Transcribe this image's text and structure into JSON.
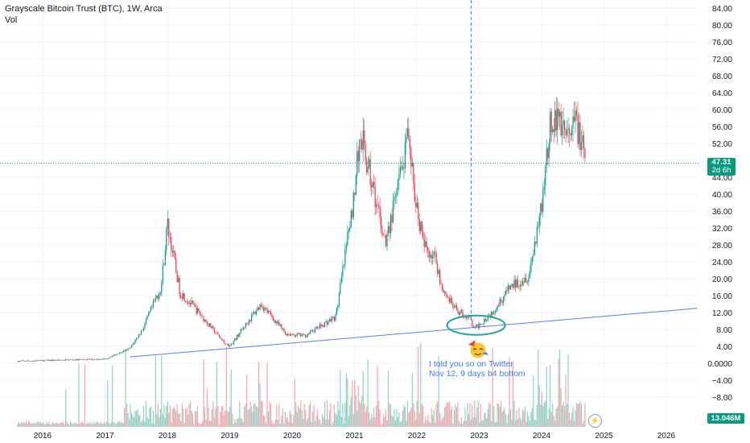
{
  "legend": {
    "title": "Grayscale Bitcoin Trust (BTC), 1W, Arca",
    "sub": "Vol"
  },
  "price_tag": {
    "value": "47.31",
    "countdown": "2d 6h"
  },
  "volume_tag": "13.046M",
  "annotation": {
    "line1": "I told you so on Twitter",
    "line2": "Nov 12, 9 days b4 bottom"
  },
  "icons": {
    "emoji": "party-face-icon",
    "bolt": "lightning-icon"
  },
  "colors": {
    "up": "#089981",
    "down": "#f23645",
    "trendline": "#5b7fe0",
    "annotation": "#3c7de8",
    "price_line": "#089981"
  },
  "chart_data": {
    "type": "candlestick",
    "y_axis_labels": [
      "84.00",
      "80.00",
      "76.00",
      "72.00",
      "68.00",
      "64.00",
      "60.00",
      "56.00",
      "52.00",
      "48.00",
      "44.00",
      "40.00",
      "36.00",
      "32.00",
      "28.00",
      "24.00",
      "20.00",
      "16.00",
      "12.00",
      "8.00",
      "4.00",
      "0.0000",
      "−4.00",
      "−8.00"
    ],
    "x_axis_labels": [
      "2016",
      "2017",
      "2018",
      "2019",
      "2020",
      "2021",
      "2022",
      "2023",
      "2024",
      "2025",
      "2026"
    ],
    "ylim": [
      -12,
      86
    ],
    "last_price": 47.31,
    "price_path_approx": [
      {
        "date": "2015.6",
        "price": 0.5
      },
      {
        "date": "2017.0",
        "price": 1.0
      },
      {
        "date": "2017.4",
        "price": 3.5
      },
      {
        "date": "2017.6",
        "price": 8.0
      },
      {
        "date": "2017.9",
        "price": 18.0
      },
      {
        "date": "2018.0",
        "price": 33.0
      },
      {
        "date": "2018.2",
        "price": 17.0
      },
      {
        "date": "2018.5",
        "price": 12.0
      },
      {
        "date": "2018.9",
        "price": 5.0
      },
      {
        "date": "2019.0",
        "price": 4.0
      },
      {
        "date": "2019.5",
        "price": 14.0
      },
      {
        "date": "2019.9",
        "price": 7.0
      },
      {
        "date": "2020.2",
        "price": 6.5
      },
      {
        "date": "2020.7",
        "price": 11.0
      },
      {
        "date": "2020.95",
        "price": 35.0
      },
      {
        "date": "2021.1",
        "price": 55.0
      },
      {
        "date": "2021.25",
        "price": 44.0
      },
      {
        "date": "2021.5",
        "price": 28.0
      },
      {
        "date": "2021.85",
        "price": 52.0
      },
      {
        "date": "2022.1",
        "price": 28.0
      },
      {
        "date": "2022.3",
        "price": 25.0
      },
      {
        "date": "2022.4",
        "price": 18.0
      },
      {
        "date": "2022.6",
        "price": 13.0
      },
      {
        "date": "2022.85",
        "price": 10.5
      },
      {
        "date": "2022.92",
        "price": 8.0
      },
      {
        "date": "2023.2",
        "price": 12.0
      },
      {
        "date": "2023.5",
        "price": 18.0
      },
      {
        "date": "2023.8",
        "price": 21.0
      },
      {
        "date": "2024.0",
        "price": 38.0
      },
      {
        "date": "2024.15",
        "price": 57.0
      },
      {
        "date": "2024.3",
        "price": 58.0
      },
      {
        "date": "2024.45",
        "price": 52.0
      },
      {
        "date": "2024.55",
        "price": 58.0
      },
      {
        "date": "2024.7",
        "price": 47.31
      }
    ],
    "trendline": [
      {
        "date": "2017.4",
        "price": 1.5
      },
      {
        "date": "2026.5",
        "price": 13.0
      }
    ],
    "vertical_marker_date": "2022.87"
  }
}
